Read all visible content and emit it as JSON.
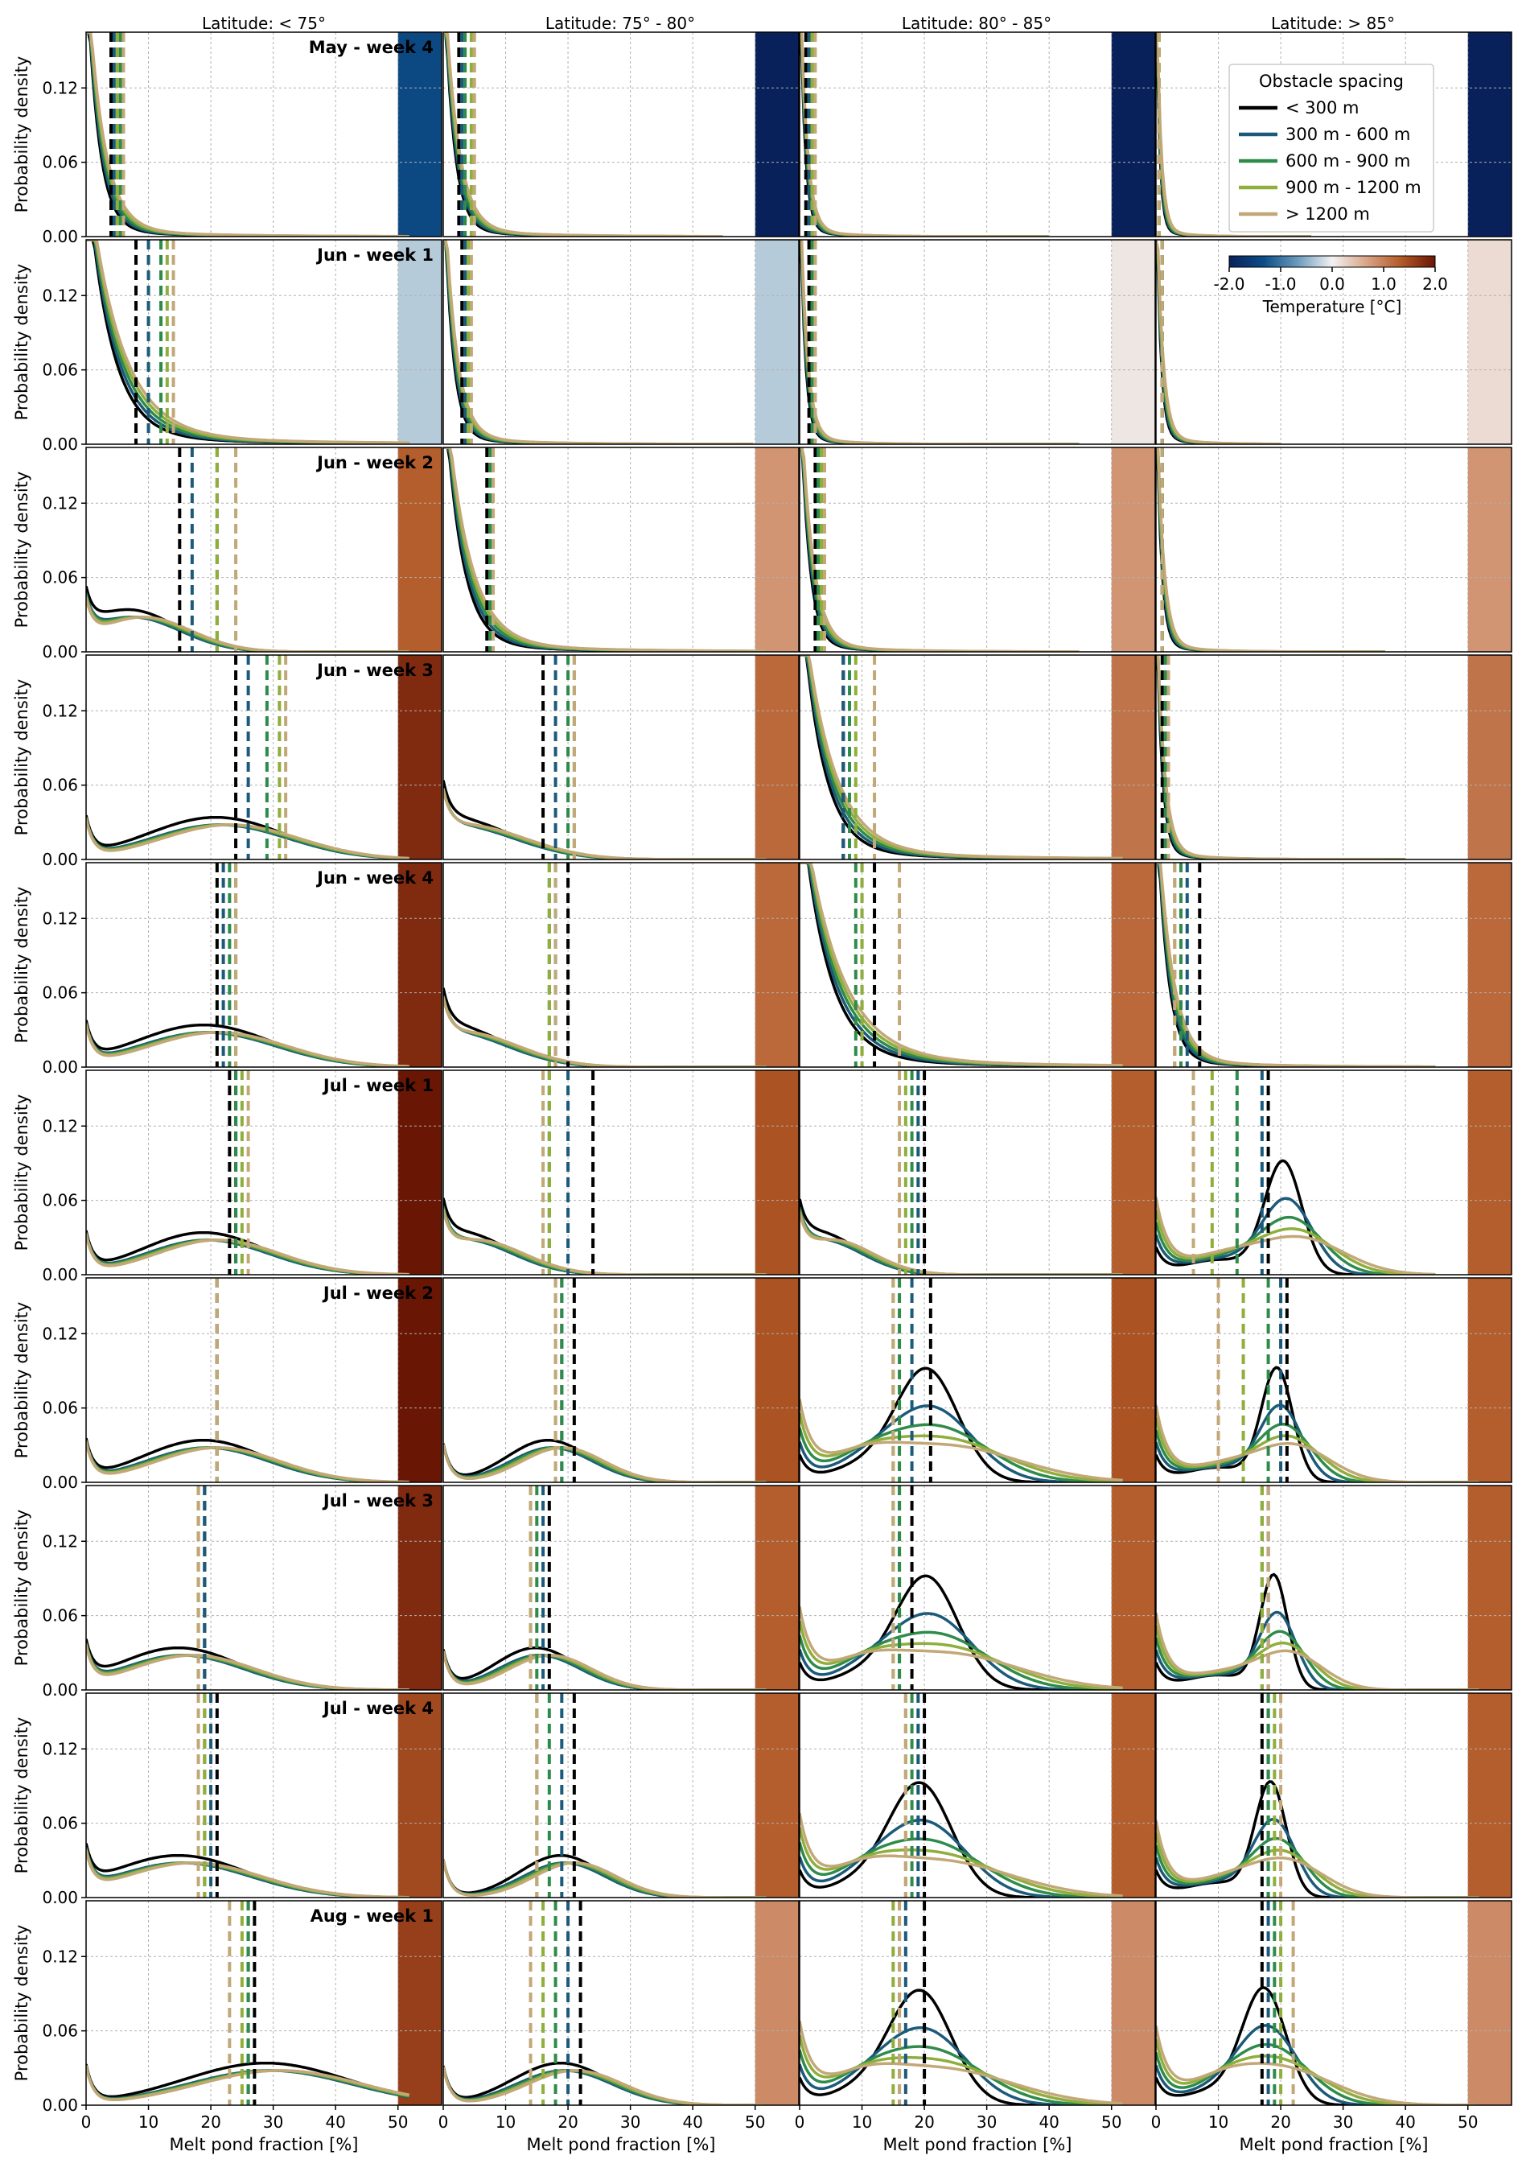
{
  "figure": {
    "columns": [
      "Latitude: < 75°",
      "Latitude: 75° - 80°",
      "Latitude: 80° - 85°",
      "Latitude: > 85°"
    ],
    "rows": [
      "May - week 4",
      "Jun - week 1",
      "Jun - week 2",
      "Jun - week 3",
      "Jun - week 4",
      "Jul - week 1",
      "Jul - week 2",
      "Jul - week 3",
      "Jul - week 4",
      "Aug - week 1"
    ],
    "ylabel": "Probability density",
    "xlabel": "Melt pond fraction [%]",
    "x_ticks": [
      "0",
      "10",
      "20",
      "30",
      "40",
      "50"
    ],
    "y_ticks": [
      "0.00",
      "0.06",
      "0.12"
    ],
    "legend_title": "Obstacle spacing",
    "colorbar_label": "Temperature [°C]",
    "colorbar_ticks": [
      "-2.0",
      "-1.0",
      "0.0",
      "1.0",
      "2.0"
    ]
  },
  "chart_data": {
    "type": "line",
    "xlim": [
      0,
      57
    ],
    "ylim": [
      0,
      0.165
    ],
    "grid": true,
    "legend_placement": "top-right of first row, fourth column",
    "colorbar_placement": "second row, fourth column",
    "series": [
      {
        "name": "< 300 m",
        "color": "#000000"
      },
      {
        "name": "300 m - 600 m",
        "color": "#1b5a7a"
      },
      {
        "name": "600 m - 900 m",
        "color": "#2e8b4a"
      },
      {
        "name": "900 m - 1200 m",
        "color": "#8fae3c"
      },
      {
        "name": "> 1200 m",
        "color": "#c2a878"
      }
    ],
    "temperature_colormap": {
      "range": [
        -2.0,
        2.0
      ],
      "stops": [
        "#08215a",
        "#0c4d88",
        "#6c9bbd",
        "#f2f2f2",
        "#d9a487",
        "#b35a28",
        "#6a1604"
      ]
    },
    "panels": [
      {
        "row": 0,
        "col": 0,
        "temp": -1.4,
        "means": [
          4,
          4.5,
          5.5,
          5,
          6
        ],
        "shape": "decay",
        "k": 2.2,
        "mode": 0,
        "maxx": 52
      },
      {
        "row": 0,
        "col": 1,
        "temp": -2.0,
        "means": [
          2.5,
          3,
          3.5,
          4.5,
          5
        ],
        "shape": "decay",
        "k": 1.8,
        "mode": 0,
        "maxx": 45
      },
      {
        "row": 0,
        "col": 2,
        "temp": -2.0,
        "means": [
          1,
          1.5,
          2,
          2,
          2.5
        ],
        "shape": "decay",
        "k": 0.9,
        "mode": 0,
        "maxx": 40
      },
      {
        "row": 0,
        "col": 3,
        "temp": -2.0,
        "means": [
          0.5,
          0.5,
          0.5,
          0.5,
          0.5
        ],
        "shape": "decay",
        "k": 0.6,
        "mode": 0,
        "maxx": 25
      },
      {
        "row": 1,
        "col": 0,
        "temp": -0.3,
        "means": [
          8,
          10,
          12,
          13,
          14
        ],
        "shape": "decay",
        "k": 4.5,
        "mode": 0,
        "maxx": 52
      },
      {
        "row": 1,
        "col": 1,
        "temp": -0.3,
        "means": [
          3,
          3.5,
          4,
          4,
          4.5
        ],
        "shape": "decay",
        "k": 1.6,
        "mode": 0,
        "maxx": 50
      },
      {
        "row": 1,
        "col": 2,
        "temp": 0.1,
        "means": [
          1.5,
          2,
          2,
          2.5,
          2.5
        ],
        "shape": "decay",
        "k": 0.9,
        "mode": 0,
        "maxx": 45
      },
      {
        "row": 1,
        "col": 3,
        "temp": 0.2,
        "means": [
          1,
          1,
          1,
          1,
          1
        ],
        "shape": "decay",
        "k": 0.8,
        "mode": 0,
        "maxx": 20
      },
      {
        "row": 2,
        "col": 0,
        "temp": 1.3,
        "means": [
          15,
          17,
          21,
          21,
          24
        ],
        "shape": "broad",
        "k": 7,
        "mode": 8,
        "maxx": 52
      },
      {
        "row": 2,
        "col": 1,
        "temp": 0.8,
        "means": [
          7,
          7.5,
          7.5,
          8,
          8
        ],
        "shape": "decay",
        "k": 3.2,
        "mode": 0,
        "maxx": 52
      },
      {
        "row": 2,
        "col": 2,
        "temp": 0.8,
        "means": [
          2.5,
          3,
          3,
          3.5,
          4
        ],
        "shape": "decay",
        "k": 1.6,
        "mode": 0,
        "maxx": 45
      },
      {
        "row": 2,
        "col": 3,
        "temp": 0.8,
        "means": [
          1,
          1,
          1,
          1,
          1
        ],
        "shape": "decay",
        "k": 0.9,
        "mode": 0,
        "maxx": 37
      },
      {
        "row": 3,
        "col": 0,
        "temp": 1.8,
        "means": [
          24,
          26,
          29,
          31,
          32
        ],
        "shape": "broad",
        "k": 10,
        "mode": 22,
        "maxx": 52
      },
      {
        "row": 3,
        "col": 1,
        "temp": 1.2,
        "means": [
          16,
          18,
          20,
          21,
          21
        ],
        "shape": "broad",
        "k": 9,
        "mode": 2,
        "maxx": 52
      },
      {
        "row": 3,
        "col": 2,
        "temp": 1.1,
        "means": [
          7,
          7,
          8,
          9,
          12
        ],
        "shape": "decay",
        "k": 4,
        "mode": 0,
        "maxx": 52
      },
      {
        "row": 3,
        "col": 3,
        "temp": 1.1,
        "means": [
          1,
          1.5,
          1.5,
          2,
          2
        ],
        "shape": "decay",
        "k": 1,
        "mode": 0,
        "maxx": 40
      },
      {
        "row": 4,
        "col": 0,
        "temp": 1.8,
        "means": [
          21,
          22,
          23,
          24,
          24
        ],
        "shape": "broad",
        "k": 10,
        "mode": 20,
        "maxx": 52
      },
      {
        "row": 4,
        "col": 1,
        "temp": 1.2,
        "means": [
          20,
          18,
          17,
          17,
          18
        ],
        "shape": "broad",
        "k": 8,
        "mode": 2,
        "maxx": 52
      },
      {
        "row": 4,
        "col": 2,
        "temp": 1.2,
        "means": [
          12,
          10,
          9,
          10,
          16
        ],
        "shape": "decay",
        "k": 5,
        "mode": 0,
        "maxx": 52
      },
      {
        "row": 4,
        "col": 3,
        "temp": 1.2,
        "means": [
          7,
          5,
          4,
          3,
          3
        ],
        "shape": "decay",
        "k": 2,
        "mode": 0,
        "maxx": 45
      },
      {
        "row": 5,
        "col": 0,
        "temp": 2.0,
        "means": [
          23,
          24,
          24,
          25,
          26
        ],
        "shape": "broad",
        "k": 9,
        "mode": 20,
        "maxx": 52
      },
      {
        "row": 5,
        "col": 1,
        "temp": 1.4,
        "means": [
          24,
          20,
          17,
          17,
          16
        ],
        "shape": "broad",
        "k": 7,
        "mode": 4,
        "maxx": 52
      },
      {
        "row": 5,
        "col": 2,
        "temp": 1.3,
        "means": [
          20,
          19,
          18,
          17,
          16
        ],
        "shape": "broad",
        "k": 6,
        "mode": 4,
        "maxx": 52
      },
      {
        "row": 5,
        "col": 3,
        "temp": 1.3,
        "means": [
          18,
          17,
          13,
          9,
          6
        ],
        "shape": "peak",
        "k": 3,
        "mode": 21,
        "maxx": 45
      },
      {
        "row": 6,
        "col": 0,
        "temp": 2.0,
        "means": [
          21,
          21,
          21,
          21,
          21
        ],
        "shape": "broad",
        "k": 9,
        "mode": 20,
        "maxx": 52
      },
      {
        "row": 6,
        "col": 1,
        "temp": 1.4,
        "means": [
          21,
          19,
          19,
          18,
          18
        ],
        "shape": "broad",
        "k": 6,
        "mode": 18,
        "maxx": 52
      },
      {
        "row": 6,
        "col": 2,
        "temp": 1.4,
        "means": [
          21,
          18,
          16,
          15,
          15
        ],
        "shape": "peak",
        "k": 5,
        "mode": 21,
        "maxx": 52
      },
      {
        "row": 6,
        "col": 3,
        "temp": 1.3,
        "means": [
          21,
          20,
          18,
          14,
          10
        ],
        "shape": "peak",
        "k": 2.5,
        "mode": 20,
        "maxx": 52
      },
      {
        "row": 7,
        "col": 0,
        "temp": 1.8,
        "means": [
          19,
          19,
          18,
          18,
          18
        ],
        "shape": "broad",
        "k": 9,
        "mode": 16,
        "maxx": 52
      },
      {
        "row": 7,
        "col": 1,
        "temp": 1.3,
        "means": [
          17,
          16,
          15,
          14,
          14
        ],
        "shape": "broad",
        "k": 6,
        "mode": 16,
        "maxx": 52
      },
      {
        "row": 7,
        "col": 2,
        "temp": 1.3,
        "means": [
          18,
          16,
          16,
          15,
          15
        ],
        "shape": "peak",
        "k": 5,
        "mode": 21,
        "maxx": 52
      },
      {
        "row": 7,
        "col": 3,
        "temp": 1.3,
        "means": [
          18,
          18,
          17,
          17,
          18
        ],
        "shape": "peak",
        "k": 2.2,
        "mode": 19.5,
        "maxx": 52
      },
      {
        "row": 8,
        "col": 0,
        "temp": 1.5,
        "means": [
          21,
          20,
          19,
          19,
          18
        ],
        "shape": "broad",
        "k": 10,
        "mode": 16,
        "maxx": 52
      },
      {
        "row": 8,
        "col": 1,
        "temp": 1.3,
        "means": [
          21,
          19,
          17,
          15,
          15
        ],
        "shape": "broad",
        "k": 6,
        "mode": 20,
        "maxx": 52
      },
      {
        "row": 8,
        "col": 2,
        "temp": 1.3,
        "means": [
          20,
          19,
          18,
          17,
          17
        ],
        "shape": "peak",
        "k": 5,
        "mode": 20,
        "maxx": 52
      },
      {
        "row": 8,
        "col": 3,
        "temp": 1.3,
        "means": [
          17,
          18,
          18,
          19,
          20
        ],
        "shape": "peak",
        "k": 2.5,
        "mode": 19,
        "maxx": 52
      },
      {
        "row": 9,
        "col": 0,
        "temp": 1.6,
        "means": [
          27,
          26,
          26,
          25,
          23
        ],
        "shape": "broad",
        "k": 12,
        "mode": 30,
        "maxx": 52
      },
      {
        "row": 9,
        "col": 1,
        "temp": 0.9,
        "means": [
          22,
          20,
          18,
          16,
          14
        ],
        "shape": "broad",
        "k": 7,
        "mode": 20,
        "maxx": 52
      },
      {
        "row": 9,
        "col": 2,
        "temp": 0.9,
        "means": [
          20,
          17,
          16,
          15,
          16
        ],
        "shape": "peak",
        "k": 5,
        "mode": 20,
        "maxx": 52
      },
      {
        "row": 9,
        "col": 3,
        "temp": 0.9,
        "means": [
          17,
          18,
          19,
          20,
          22
        ],
        "shape": "peak",
        "k": 3.5,
        "mode": 18,
        "maxx": 52
      }
    ]
  }
}
